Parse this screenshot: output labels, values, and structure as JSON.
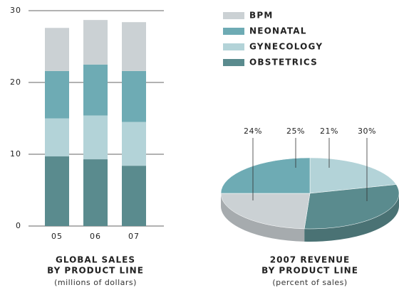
{
  "chart_data": [
    {
      "type": "bar",
      "stacked": true,
      "title": [
        "GLOBAL SALES",
        "BY PRODUCT LINE"
      ],
      "subtitle": "(millions of dollars)",
      "categories": [
        "05",
        "06",
        "07"
      ],
      "series": [
        {
          "name": "OBSTETRICS",
          "color": "#5a8b8e",
          "values": [
            9.7,
            9.3,
            8.4
          ]
        },
        {
          "name": "GYNECOLOGY",
          "color": "#b3d3d8",
          "values": [
            5.3,
            6.1,
            6.1
          ]
        },
        {
          "name": "NEONATAL",
          "color": "#6eabb4",
          "values": [
            6.6,
            7.1,
            7.1
          ]
        },
        {
          "name": "BPM",
          "color": "#cbd1d4",
          "values": [
            6.0,
            6.2,
            6.8
          ]
        }
      ],
      "ylim": [
        0,
        30
      ],
      "yticks": [
        0,
        10,
        20,
        30
      ],
      "grid": true
    },
    {
      "type": "pie",
      "title": [
        "2007 REVENUE",
        "BY PRODUCT LINE"
      ],
      "subtitle": "(percent of sales)",
      "values": [
        21,
        30,
        24,
        25
      ],
      "value_labels": [
        "21%",
        "30%",
        "24%",
        "25%"
      ],
      "colors": [
        "#b3d3d8",
        "#5a8b8e",
        "#cbd1d4",
        "#6eabb4"
      ]
    }
  ]
}
